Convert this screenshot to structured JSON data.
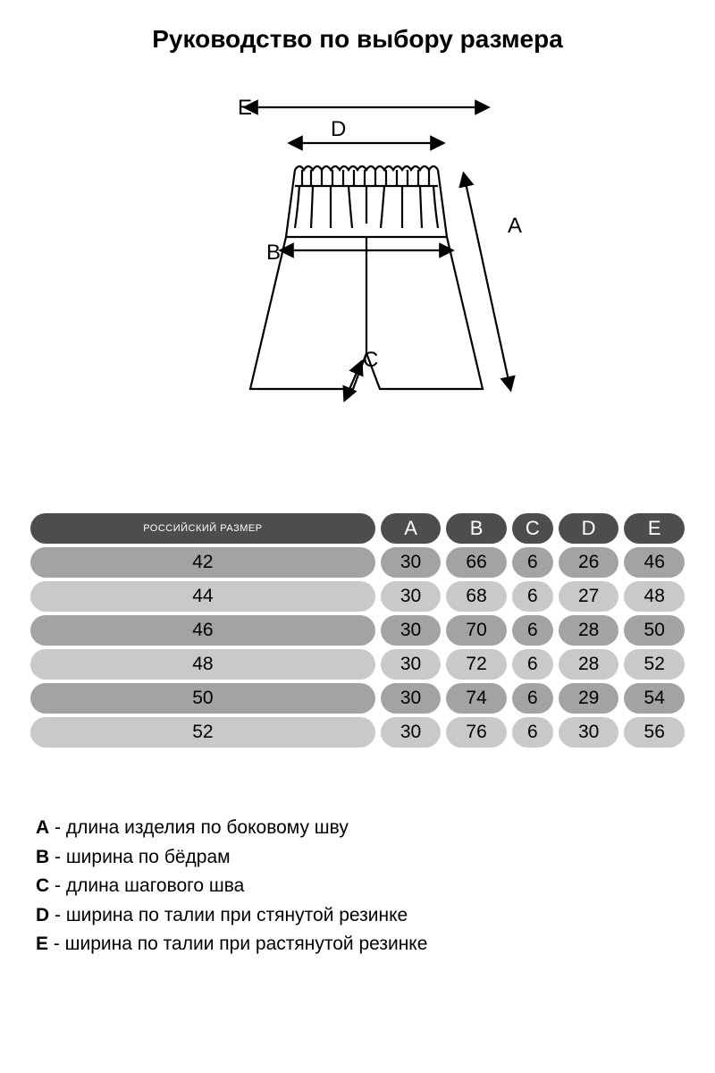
{
  "title": "Руководство по выбору размера",
  "title_fontsize": 28,
  "diagram": {
    "labels": {
      "A": "A",
      "B": "B",
      "C": "C",
      "D": "D",
      "E": "E"
    },
    "stroke": "#000000",
    "stroke_width": 2.2,
    "label_fontsize": 24
  },
  "table": {
    "header_bg": "#4d4d4d",
    "header_fg": "#ffffff",
    "row_bg_dark": "#a3a3a3",
    "row_bg_light": "#c9c9c9",
    "cell_fg": "#000000",
    "header_fontsize": 22,
    "cell_fontsize": 21,
    "columns": [
      "РОССИЙСКИЙ РАЗМЕР",
      "A",
      "B",
      "C",
      "D",
      "E"
    ],
    "rows": [
      [
        "42",
        "30",
        "66",
        "6",
        "26",
        "46"
      ],
      [
        "44",
        "30",
        "68",
        "6",
        "27",
        "48"
      ],
      [
        "46",
        "30",
        "70",
        "6",
        "28",
        "50"
      ],
      [
        "48",
        "30",
        "72",
        "6",
        "28",
        "52"
      ],
      [
        "50",
        "30",
        "74",
        "6",
        "29",
        "54"
      ],
      [
        "52",
        "30",
        "76",
        "6",
        "30",
        "56"
      ]
    ]
  },
  "legend": {
    "fontsize": 21,
    "items": [
      {
        "key": "A",
        "text": "длина изделия по боковому шву"
      },
      {
        "key": "B",
        "text": "ширина по бёдрам"
      },
      {
        "key": "C",
        "text": "длина шагового шва"
      },
      {
        "key": "D",
        "text": "ширина по талии при стянутой резинке"
      },
      {
        "key": "E",
        "text": "ширина по талии при растянутой резинке"
      }
    ]
  }
}
